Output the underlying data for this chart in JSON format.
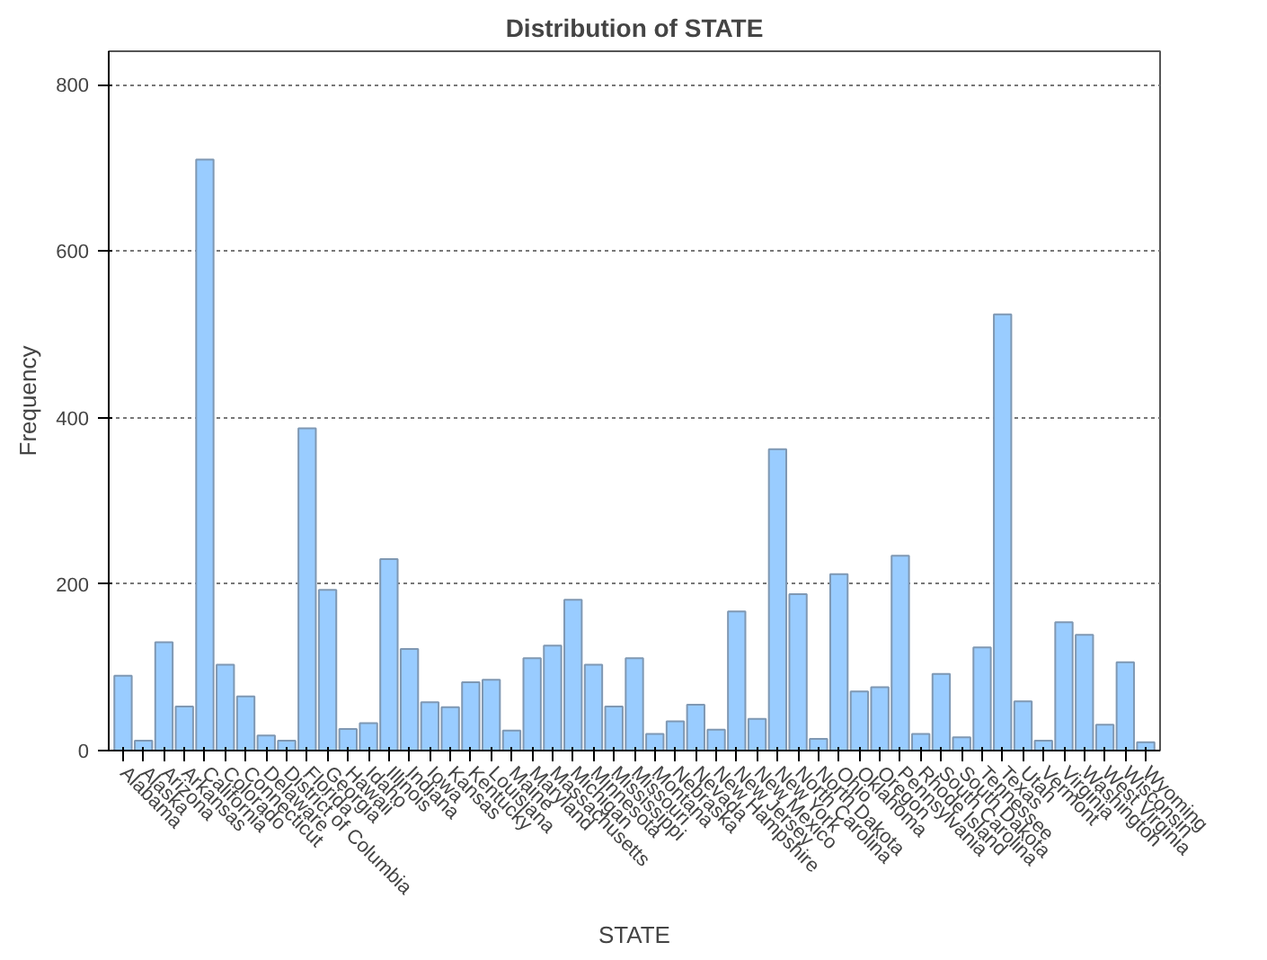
{
  "chart_data": {
    "type": "bar",
    "title": "Distribution of STATE",
    "xlabel": "STATE",
    "ylabel": "Frequency",
    "categories": [
      "Alabama",
      "Alaska",
      "Arizona",
      "Arkansas",
      "California",
      "Colorado",
      "Connecticut",
      "Delaware",
      "District of Columbia",
      "Florida",
      "Georgia",
      "Hawaii",
      "Idaho",
      "Illinois",
      "Indiana",
      "Iowa",
      "Kansas",
      "Kentucky",
      "Louisiana",
      "Maine",
      "Maryland",
      "Massachusetts",
      "Michigan",
      "Minnesota",
      "Mississippi",
      "Missouri",
      "Montana",
      "Nebraska",
      "Nevada",
      "New Hampshire",
      "New Jersey",
      "New Mexico",
      "New York",
      "North Carolina",
      "North Dakota",
      "Ohio",
      "Oklahoma",
      "Oregon",
      "Pennsylvania",
      "Rhode Island",
      "South Carolina",
      "South Dakota",
      "Tennessee",
      "Texas",
      "Utah",
      "Vermont",
      "Virginia",
      "Washington",
      "West Virginia",
      "Wisconsin",
      "Wyoming"
    ],
    "values": [
      90,
      12,
      130,
      53,
      710,
      103,
      65,
      18,
      12,
      387,
      193,
      26,
      33,
      230,
      122,
      58,
      52,
      82,
      85,
      24,
      111,
      126,
      181,
      103,
      53,
      111,
      20,
      35,
      55,
      25,
      167,
      38,
      362,
      188,
      14,
      212,
      71,
      76,
      234,
      20,
      92,
      16,
      124,
      524,
      59,
      12,
      154,
      139,
      31,
      106,
      10
    ],
    "color": "#99ccff",
    "ylim": [
      0,
      840
    ],
    "yticks": [
      0,
      200,
      400,
      600,
      800
    ],
    "grid": "y"
  }
}
